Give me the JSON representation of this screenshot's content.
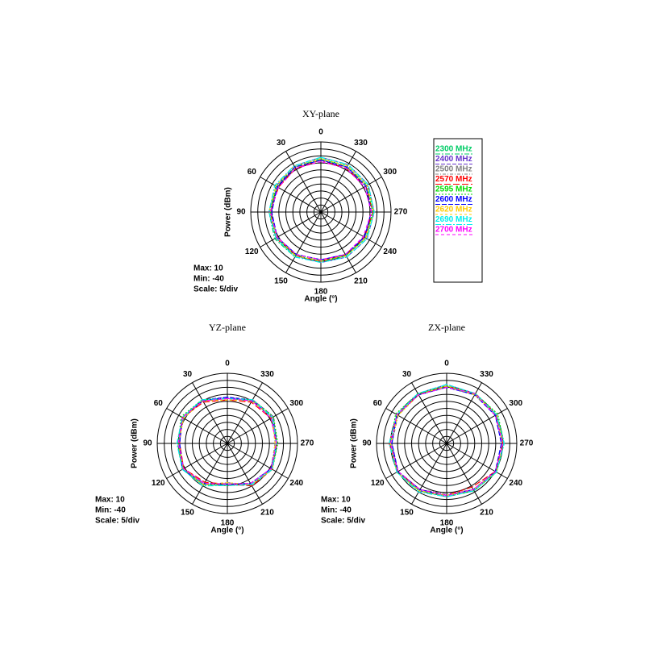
{
  "chart_data": [
    {
      "type": "polar",
      "title": "XY-plane",
      "theta_label": "Angle (°)",
      "r_label": "Power (dBm)",
      "annotations": [
        "Max: 10",
        "Min: -40",
        "Scale: 5/div"
      ],
      "rlim": [
        -40,
        10
      ],
      "rticks": [
        -40,
        -35,
        -30,
        -25,
        -20,
        -15,
        -10,
        -5,
        0,
        5,
        10
      ],
      "thetaticks": [
        0,
        30,
        60,
        90,
        120,
        150,
        180,
        210,
        240,
        270,
        300,
        330
      ],
      "theta_direction": "counterclockwise",
      "theta_zero": "top",
      "legend": true,
      "theta": [
        0,
        30,
        60,
        90,
        120,
        150,
        180,
        210,
        240,
        270,
        300,
        330
      ],
      "series": [
        {
          "name": "2300 MHz",
          "color": "#00cc66",
          "values": [
            -2,
            -3,
            -4,
            -3,
            -2,
            -3,
            -5,
            -4,
            -3,
            -2,
            -2,
            -3
          ]
        },
        {
          "name": "2400 MHz",
          "color": "#6633cc",
          "values": [
            -1,
            -2,
            -3,
            -3,
            -3,
            -4,
            -4,
            -3,
            -2,
            -2,
            -1,
            -1
          ]
        },
        {
          "name": "2500 MHz",
          "color": "#808080",
          "values": [
            -3,
            -3,
            -4,
            -4,
            -4,
            -5,
            -6,
            -5,
            -4,
            -3,
            -3,
            -3
          ]
        },
        {
          "name": "2570 MHz",
          "color": "#ff0000",
          "values": [
            -3,
            -4,
            -5,
            -4,
            -3,
            -4,
            -5,
            -5,
            -4,
            -3,
            -3,
            -4
          ]
        },
        {
          "name": "2595 MHz",
          "color": "#00dd00",
          "values": [
            -2,
            -3,
            -3,
            -4,
            -3,
            -4,
            -5,
            -4,
            -3,
            -3,
            -2,
            -2
          ]
        },
        {
          "name": "2600 MHz",
          "color": "#0000ff",
          "values": [
            -3,
            -3,
            -4,
            -5,
            -4,
            -5,
            -6,
            -5,
            -4,
            -4,
            -3,
            -3
          ]
        },
        {
          "name": "2620 MHz",
          "color": "#ffcc00",
          "values": [
            -2,
            -2,
            -3,
            -3,
            -4,
            -4,
            -5,
            -4,
            -3,
            -2,
            -2,
            -2
          ]
        },
        {
          "name": "2690 MHz",
          "color": "#00eeee",
          "values": [
            -1,
            -2,
            -2,
            -3,
            -3,
            -3,
            -4,
            -3,
            -2,
            -2,
            -1,
            -1
          ]
        },
        {
          "name": "2700 MHz",
          "color": "#ff00ff",
          "values": [
            -4,
            -4,
            -5,
            -4,
            -4,
            -5,
            -6,
            -5,
            -5,
            -4,
            -4,
            -4
          ]
        }
      ]
    },
    {
      "type": "polar",
      "title": "YZ-plane",
      "theta_label": "Angle (°)",
      "r_label": "Power (dBm)",
      "annotations": [
        "Max: 10",
        "Min: -40",
        "Scale: 5/div"
      ],
      "rlim": [
        -40,
        10
      ],
      "rticks": [
        -40,
        -35,
        -30,
        -25,
        -20,
        -15,
        -10,
        -5,
        0,
        5,
        10
      ],
      "thetaticks": [
        0,
        30,
        60,
        90,
        120,
        150,
        180,
        210,
        240,
        270,
        300,
        330
      ],
      "theta_direction": "counterclockwise",
      "theta_zero": "top",
      "legend": false,
      "theta": [
        0,
        30,
        60,
        90,
        120,
        150,
        180,
        210,
        240,
        270,
        300,
        330
      ],
      "series": [
        {
          "color": "#00cc66",
          "values": [
            -8,
            -5,
            -3,
            -5,
            -3,
            -6,
            -11,
            -6,
            -3,
            -5,
            -3,
            -5
          ]
        },
        {
          "color": "#6633cc",
          "values": [
            -7,
            -4,
            -3,
            -6,
            -4,
            -7,
            -10,
            -7,
            -4,
            -5,
            -2,
            -4
          ]
        },
        {
          "color": "#808080",
          "values": [
            -8,
            -5,
            -4,
            -5,
            -3,
            -6,
            -12,
            -6,
            -4,
            -6,
            -3,
            -5
          ]
        },
        {
          "color": "#ff0000",
          "values": [
            -9,
            -6,
            -3,
            -6,
            -4,
            -8,
            -11,
            -5,
            -3,
            -5,
            -4,
            -6
          ]
        },
        {
          "color": "#00dd00",
          "values": [
            -8,
            -4,
            -2,
            -5,
            -3,
            -6,
            -10,
            -6,
            -3,
            -4,
            -2,
            -4
          ]
        },
        {
          "color": "#0000ff",
          "values": [
            -7,
            -5,
            -3,
            -6,
            -3,
            -7,
            -11,
            -7,
            -4,
            -5,
            -3,
            -5
          ]
        },
        {
          "color": "#ffcc00",
          "values": [
            -9,
            -5,
            -4,
            -5,
            -4,
            -6,
            -12,
            -6,
            -3,
            -6,
            -3,
            -5
          ]
        },
        {
          "color": "#00eeee",
          "values": [
            -8,
            -4,
            -3,
            -4,
            -3,
            -5,
            -10,
            -6,
            -3,
            -5,
            -3,
            -4
          ]
        },
        {
          "color": "#ff00ff",
          "values": [
            -8,
            -5,
            -3,
            -5,
            -4,
            -7,
            -11,
            -7,
            -4,
            -5,
            -4,
            -5
          ]
        }
      ]
    },
    {
      "type": "polar",
      "title": "ZX-plane",
      "theta_label": "Angle (°)",
      "r_label": "Power (dBm)",
      "annotations": [
        "Max: 10",
        "Min: -40",
        "Scale: 5/div"
      ],
      "rlim": [
        -40,
        10
      ],
      "rticks": [
        -40,
        -35,
        -30,
        -25,
        -20,
        -15,
        -10,
        -5,
        0,
        5,
        10
      ],
      "thetaticks": [
        0,
        30,
        60,
        90,
        120,
        150,
        180,
        210,
        240,
        270,
        300,
        330
      ],
      "theta_direction": "counterclockwise",
      "theta_zero": "top",
      "legend": false,
      "theta": [
        0,
        30,
        60,
        90,
        120,
        150,
        180,
        210,
        240,
        270,
        300,
        330
      ],
      "series": [
        {
          "color": "#00cc66",
          "values": [
            1,
            0,
            1,
            0,
            1,
            -1,
            -3,
            -1,
            1,
            0,
            1,
            0
          ]
        },
        {
          "color": "#6633cc",
          "values": [
            2,
            1,
            1,
            0,
            0,
            -1,
            -2,
            -1,
            0,
            1,
            1,
            1
          ]
        },
        {
          "color": "#808080",
          "values": [
            0,
            0,
            0,
            -1,
            0,
            -2,
            -4,
            -2,
            0,
            0,
            0,
            0
          ]
        },
        {
          "color": "#ff0000",
          "values": [
            1,
            0,
            1,
            1,
            0,
            -2,
            -3,
            -4,
            0,
            0,
            1,
            1
          ]
        },
        {
          "color": "#00dd00",
          "values": [
            1,
            1,
            2,
            0,
            1,
            -1,
            -2,
            -1,
            1,
            1,
            2,
            1
          ]
        },
        {
          "color": "#0000ff",
          "values": [
            0,
            0,
            1,
            -1,
            0,
            -2,
            -3,
            -2,
            0,
            -1,
            0,
            0
          ]
        },
        {
          "color": "#ffcc00",
          "values": [
            1,
            0,
            0,
            0,
            1,
            -1,
            -3,
            -2,
            1,
            0,
            1,
            0
          ]
        },
        {
          "color": "#00eeee",
          "values": [
            2,
            1,
            1,
            1,
            1,
            0,
            -2,
            -1,
            1,
            1,
            1,
            1
          ]
        },
        {
          "color": "#ff00ff",
          "values": [
            0,
            0,
            1,
            0,
            0,
            -2,
            -3,
            -2,
            0,
            0,
            0,
            1
          ]
        }
      ]
    }
  ]
}
